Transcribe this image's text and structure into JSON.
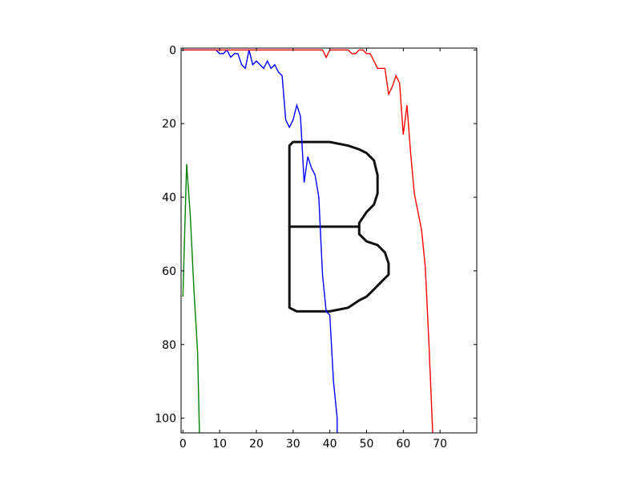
{
  "chart_data": {
    "type": "line",
    "title": "",
    "xlabel": "",
    "ylabel": "",
    "xlim": [
      -0.5,
      80
    ],
    "ylim": [
      104,
      -0.5
    ],
    "y_inverted": true,
    "grid": false,
    "legend": "none",
    "x_ticks": [
      0,
      10,
      20,
      30,
      40,
      50,
      60,
      70
    ],
    "y_ticks": [
      0,
      20,
      40,
      60,
      80,
      100
    ],
    "background_image": "binary-letter-B",
    "series": [
      {
        "color": "#0000ff",
        "points": [
          [
            0,
            0
          ],
          [
            5,
            0
          ],
          [
            9,
            0
          ],
          [
            10,
            1
          ],
          [
            11,
            1
          ],
          [
            12,
            0
          ],
          [
            13,
            2
          ],
          [
            14,
            1
          ],
          [
            15,
            1
          ],
          [
            16,
            4
          ],
          [
            17,
            5
          ],
          [
            18,
            0
          ],
          [
            19,
            4
          ],
          [
            20,
            3
          ],
          [
            21,
            4
          ],
          [
            22,
            5
          ],
          [
            23,
            3
          ],
          [
            24,
            5
          ],
          [
            25,
            4
          ],
          [
            26,
            6
          ],
          [
            27,
            7
          ],
          [
            28,
            19
          ],
          [
            29,
            21
          ],
          [
            30,
            19
          ],
          [
            31,
            15
          ],
          [
            32,
            18
          ],
          [
            33,
            36
          ],
          [
            34,
            29
          ],
          [
            35,
            32
          ],
          [
            36,
            34
          ],
          [
            37,
            40
          ],
          [
            38,
            61
          ],
          [
            39,
            71
          ],
          [
            40,
            72
          ],
          [
            41,
            90
          ],
          [
            42,
            100
          ],
          [
            42,
            104
          ]
        ]
      },
      {
        "color": "#ff0000",
        "points": [
          [
            0,
            0
          ],
          [
            30,
            0
          ],
          [
            38,
            0
          ],
          [
            39,
            2
          ],
          [
            40,
            0
          ],
          [
            45,
            0
          ],
          [
            46,
            1
          ],
          [
            47,
            1
          ],
          [
            48,
            0
          ],
          [
            49,
            0
          ],
          [
            50,
            1
          ],
          [
            51,
            1
          ],
          [
            52,
            3
          ],
          [
            53,
            5
          ],
          [
            54,
            5
          ],
          [
            55,
            5
          ],
          [
            56,
            12
          ],
          [
            57,
            10
          ],
          [
            58,
            7
          ],
          [
            59,
            9
          ],
          [
            60,
            23
          ],
          [
            61,
            15
          ],
          [
            62,
            28
          ],
          [
            63,
            39
          ],
          [
            64,
            44
          ],
          [
            65,
            49
          ],
          [
            66,
            59
          ],
          [
            67,
            80
          ],
          [
            68,
            104
          ]
        ]
      },
      {
        "color": "#008000",
        "points": [
          [
            0,
            67
          ],
          [
            1,
            31
          ],
          [
            2,
            45
          ],
          [
            3,
            65
          ],
          [
            4,
            82
          ],
          [
            4.5,
            104
          ]
        ]
      }
    ]
  }
}
